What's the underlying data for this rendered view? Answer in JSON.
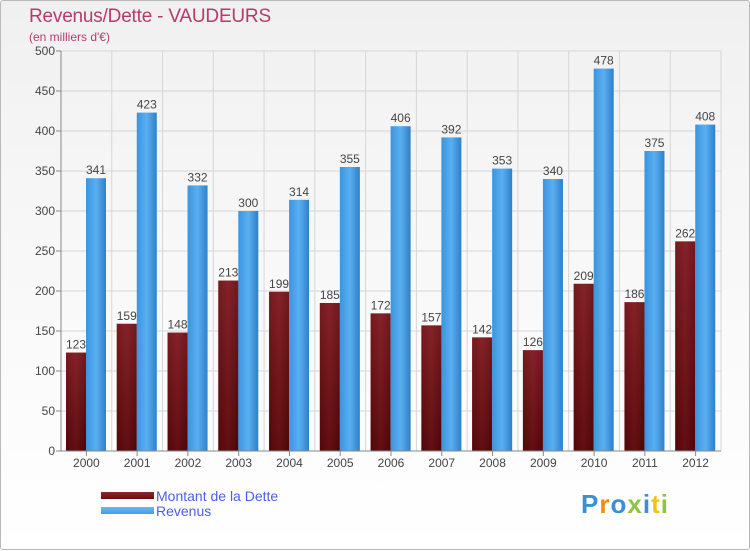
{
  "header": {
    "title": "Revenus/Dette - VAUDEURS",
    "subtitle": "(en milliers d'€)"
  },
  "legend": {
    "items": [
      {
        "label": "Montant de la Dette",
        "color": "#6b0d12"
      },
      {
        "label": "Revenus",
        "color": "#3f9fe6"
      }
    ]
  },
  "logo": {
    "text": "Proxiti"
  },
  "chart_data": {
    "type": "bar",
    "title": "Revenus/Dette - VAUDEURS",
    "ylabel": "(en milliers d'€)",
    "xlabel": "",
    "categories": [
      "2000",
      "2001",
      "2002",
      "2003",
      "2004",
      "2005",
      "2006",
      "2007",
      "2008",
      "2009",
      "2010",
      "2011",
      "2012"
    ],
    "series": [
      {
        "name": "Montant de la Dette",
        "color": "#6b0d12",
        "values": [
          123,
          159,
          148,
          213,
          199,
          185,
          172,
          157,
          142,
          126,
          209,
          186,
          262
        ]
      },
      {
        "name": "Revenus",
        "color": "#3f9fe6",
        "values": [
          341,
          423,
          332,
          300,
          314,
          355,
          406,
          392,
          353,
          340,
          478,
          375,
          408
        ]
      }
    ],
    "ylim": [
      0,
      500
    ],
    "yticks": [
      0,
      50,
      100,
      150,
      200,
      250,
      300,
      350,
      400,
      450,
      500
    ],
    "grid": true,
    "legend": "bottom-left"
  }
}
